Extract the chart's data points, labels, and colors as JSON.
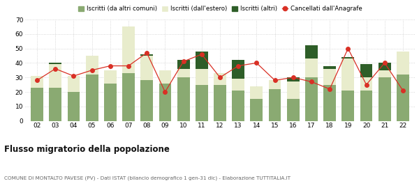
{
  "years": [
    "02",
    "03",
    "04",
    "05",
    "06",
    "07",
    "08",
    "09",
    "10",
    "11",
    "12",
    "13",
    "14",
    "15",
    "16",
    "17",
    "18",
    "19",
    "20",
    "21",
    "22"
  ],
  "iscritti_comuni": [
    23,
    23,
    20,
    32,
    26,
    33,
    28,
    26,
    30,
    25,
    25,
    21,
    15,
    22,
    15,
    30,
    25,
    21,
    21,
    30,
    32
  ],
  "iscritti_estero": [
    8,
    16,
    11,
    13,
    9,
    32,
    17,
    9,
    6,
    11,
    8,
    8,
    9,
    6,
    12,
    13,
    11,
    22,
    9,
    5,
    16
  ],
  "iscritti_altri": [
    0,
    1,
    0,
    0,
    0,
    0,
    1,
    0,
    6,
    12,
    0,
    13,
    0,
    0,
    3,
    9,
    2,
    1,
    9,
    5,
    0
  ],
  "cancellati": [
    28,
    36,
    31,
    35,
    38,
    38,
    47,
    20,
    41,
    46,
    30,
    38,
    40,
    28,
    30,
    27,
    22,
    50,
    25,
    40,
    21
  ],
  "color_comuni": "#8aaa72",
  "color_estero": "#e8eccc",
  "color_altri": "#2e5e28",
  "color_cancellati": "#d93025",
  "ylim": [
    0,
    70
  ],
  "yticks": [
    0,
    10,
    20,
    30,
    40,
    50,
    60,
    70
  ],
  "title": "Flusso migratorio della popolazione",
  "subtitle": "COMUNE DI MONTALTO PAVESE (PV) - Dati ISTAT (bilancio demografico 1 gen-31 dic) - Elaborazione TUTTITALIA.IT",
  "legend_labels": [
    "Iscritti (da altri comuni)",
    "Iscritti (dall'estero)",
    "Iscritti (altri)",
    "Cancellati dall'Anagrafe"
  ],
  "bg_color": "#ffffff",
  "grid_color": "#cccccc"
}
